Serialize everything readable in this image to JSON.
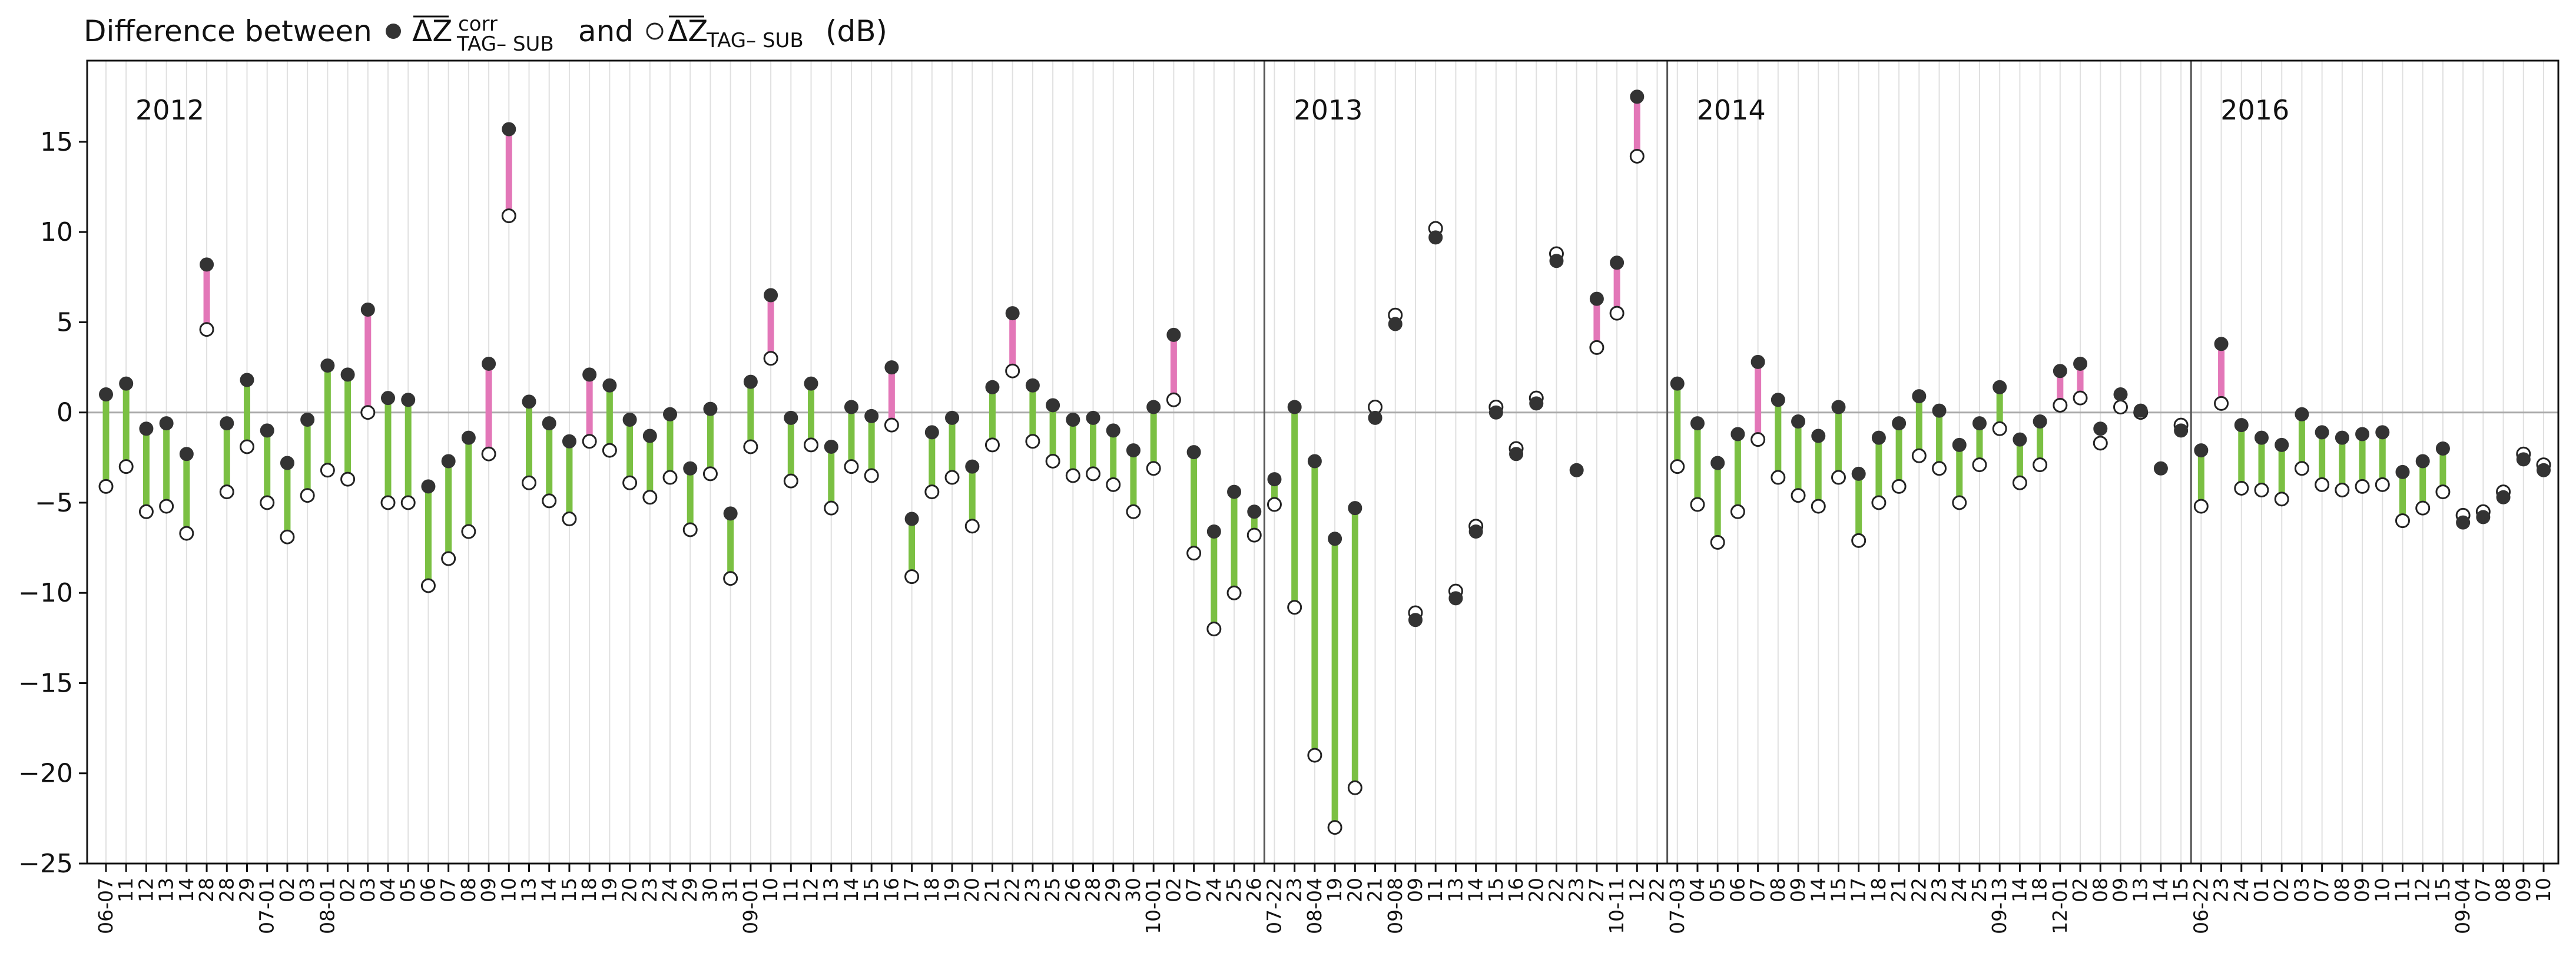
{
  "chart_data": {
    "type": "dumbbell",
    "title_parts": {
      "prefix": "Difference between",
      "symbol": "ΔZ",
      "sup1": "corr",
      "sub1": "TAG– SUB",
      "middle": "and",
      "sub2": "TAG– SUB",
      "unit": "(dB)"
    },
    "ylim": [
      -25,
      19.5
    ],
    "yticks": [
      -25,
      -20,
      -15,
      -10,
      -5,
      0,
      5,
      10,
      15
    ],
    "ytick_labels": [
      "−25",
      "−20",
      "−15",
      "−10",
      "−5",
      "0",
      "5",
      "10",
      "15"
    ],
    "colors": {
      "negative": "#7bc043",
      "positive": "#e377b8",
      "corr_marker": "#333333",
      "zero_line": "#aaaaaa",
      "grid": "#e0e0e0"
    },
    "year_groups": [
      {
        "label": "2012",
        "start": 0
      },
      {
        "label": "2013",
        "start": 58
      },
      {
        "label": "2014",
        "start": 78
      },
      {
        "label": "2016",
        "start": 104
      }
    ],
    "series": [
      {
        "name": "corr",
        "marker": "filled"
      },
      {
        "name": "uncorr",
        "marker": "open"
      }
    ],
    "points": [
      {
        "x": "06-07",
        "corr": 1.0,
        "raw": -4.1
      },
      {
        "x": "11",
        "corr": 1.6,
        "raw": -3.0
      },
      {
        "x": "12",
        "corr": -0.9,
        "raw": -5.5
      },
      {
        "x": "13",
        "corr": -0.6,
        "raw": -5.2
      },
      {
        "x": "14",
        "corr": -2.3,
        "raw": -6.7
      },
      {
        "x": "28",
        "corr": 8.2,
        "raw": 4.6
      },
      {
        "x": "28",
        "corr": -0.6,
        "raw": -4.4
      },
      {
        "x": "29",
        "corr": 1.8,
        "raw": -1.9
      },
      {
        "x": "07-01",
        "corr": -1.0,
        "raw": -5.0
      },
      {
        "x": "02",
        "corr": -2.8,
        "raw": -6.9
      },
      {
        "x": "03",
        "corr": -0.4,
        "raw": -4.6
      },
      {
        "x": "08-01",
        "corr": 2.6,
        "raw": -3.2
      },
      {
        "x": "02",
        "corr": 2.1,
        "raw": -3.7
      },
      {
        "x": "03",
        "corr": 5.7,
        "raw": 0.0
      },
      {
        "x": "04",
        "corr": 0.8,
        "raw": -5.0
      },
      {
        "x": "05",
        "corr": 0.7,
        "raw": -5.0
      },
      {
        "x": "06",
        "corr": -4.1,
        "raw": -9.6
      },
      {
        "x": "07",
        "corr": -2.7,
        "raw": -8.1
      },
      {
        "x": "08",
        "corr": -1.4,
        "raw": -6.6
      },
      {
        "x": "09",
        "corr": 2.7,
        "raw": -2.3
      },
      {
        "x": "10",
        "corr": 15.7,
        "raw": 10.9
      },
      {
        "x": "13",
        "corr": 0.6,
        "raw": -3.9
      },
      {
        "x": "14",
        "corr": -0.6,
        "raw": -4.9
      },
      {
        "x": "15",
        "corr": -1.6,
        "raw": -5.9
      },
      {
        "x": "18",
        "corr": 2.1,
        "raw": -1.6
      },
      {
        "x": "19",
        "corr": 1.5,
        "raw": -2.1
      },
      {
        "x": "20",
        "corr": -0.4,
        "raw": -3.9
      },
      {
        "x": "23",
        "corr": -1.3,
        "raw": -4.7
      },
      {
        "x": "24",
        "corr": -0.1,
        "raw": -3.6
      },
      {
        "x": "29",
        "corr": -3.1,
        "raw": -6.5
      },
      {
        "x": "30",
        "corr": 0.2,
        "raw": -3.4
      },
      {
        "x": "31",
        "corr": -5.6,
        "raw": -9.2
      },
      {
        "x": "09-01",
        "corr": 1.7,
        "raw": -1.9
      },
      {
        "x": "10",
        "corr": 6.5,
        "raw": 3.0
      },
      {
        "x": "11",
        "corr": -0.3,
        "raw": -3.8
      },
      {
        "x": "12",
        "corr": 1.6,
        "raw": -1.8
      },
      {
        "x": "13",
        "corr": -1.9,
        "raw": -5.3
      },
      {
        "x": "14",
        "corr": 0.3,
        "raw": -3.0
      },
      {
        "x": "15",
        "corr": -0.2,
        "raw": -3.5
      },
      {
        "x": "16",
        "corr": 2.5,
        "raw": -0.7
      },
      {
        "x": "17",
        "corr": -5.9,
        "raw": -9.1
      },
      {
        "x": "18",
        "corr": -1.1,
        "raw": -4.4
      },
      {
        "x": "19",
        "corr": -0.3,
        "raw": -3.6
      },
      {
        "x": "20",
        "corr": -3.0,
        "raw": -6.3
      },
      {
        "x": "21",
        "corr": 1.4,
        "raw": -1.8
      },
      {
        "x": "22",
        "corr": 5.5,
        "raw": 2.3
      },
      {
        "x": "23",
        "corr": 1.5,
        "raw": -1.6
      },
      {
        "x": "25",
        "corr": 0.4,
        "raw": -2.7
      },
      {
        "x": "26",
        "corr": -0.4,
        "raw": -3.5
      },
      {
        "x": "28",
        "corr": -0.3,
        "raw": -3.4
      },
      {
        "x": "29",
        "corr": -1.0,
        "raw": -4.0
      },
      {
        "x": "30",
        "corr": -2.1,
        "raw": -5.5
      },
      {
        "x": "10-01",
        "corr": 0.3,
        "raw": -3.1
      },
      {
        "x": "02",
        "corr": 4.3,
        "raw": 0.7
      },
      {
        "x": "07",
        "corr": -2.2,
        "raw": -7.8
      },
      {
        "x": "24",
        "corr": -6.6,
        "raw": -12.0
      },
      {
        "x": "25",
        "corr": -4.4,
        "raw": -10.0
      },
      {
        "x": "26",
        "corr": -5.5,
        "raw": -6.8
      },
      {
        "x": "07-22",
        "corr": -3.7,
        "raw": -5.1
      },
      {
        "x": "23",
        "corr": 0.3,
        "raw": -10.8
      },
      {
        "x": "08-04",
        "corr": -2.7,
        "raw": -19.0
      },
      {
        "x": "19",
        "corr": -7.0,
        "raw": -23.0
      },
      {
        "x": "20",
        "corr": -5.3,
        "raw": -20.8
      },
      {
        "x": "21",
        "corr": -0.3,
        "raw": 0.3
      },
      {
        "x": "09-08",
        "corr": 4.9,
        "raw": 5.4
      },
      {
        "x": "09",
        "corr": -11.5,
        "raw": -11.1
      },
      {
        "x": "11",
        "corr": 9.7,
        "raw": 10.2
      },
      {
        "x": "13",
        "corr": -10.3,
        "raw": -9.9
      },
      {
        "x": "14",
        "corr": -6.6,
        "raw": -6.3
      },
      {
        "x": "15",
        "corr": 0.0,
        "raw": 0.3
      },
      {
        "x": "16",
        "corr": -2.3,
        "raw": -2.0
      },
      {
        "x": "20",
        "corr": 0.5,
        "raw": 0.8
      },
      {
        "x": "22",
        "corr": 8.4,
        "raw": 8.8
      },
      {
        "x": "23",
        "corr": -3.2,
        "raw": null
      },
      {
        "x": "27",
        "corr": 6.3,
        "raw": 3.6
      },
      {
        "x": "10-11",
        "corr": 8.3,
        "raw": 5.5
      },
      {
        "x": "12",
        "corr": 17.5,
        "raw": 14.2
      },
      {
        "x": "22",
        "corr": null,
        "raw": null
      },
      {
        "x": "07-03",
        "corr": 1.6,
        "raw": -3.0
      },
      {
        "x": "04",
        "corr": -0.6,
        "raw": -5.1
      },
      {
        "x": "05",
        "corr": -2.8,
        "raw": -7.2
      },
      {
        "x": "06",
        "corr": -1.2,
        "raw": -5.5
      },
      {
        "x": "07",
        "corr": 2.8,
        "raw": -1.5
      },
      {
        "x": "08",
        "corr": 0.7,
        "raw": -3.6
      },
      {
        "x": "09",
        "corr": -0.5,
        "raw": -4.6
      },
      {
        "x": "14",
        "corr": -1.3,
        "raw": -5.2
      },
      {
        "x": "15",
        "corr": 0.3,
        "raw": -3.6
      },
      {
        "x": "17",
        "corr": -3.4,
        "raw": -7.1
      },
      {
        "x": "18",
        "corr": -1.4,
        "raw": -5.0
      },
      {
        "x": "21",
        "corr": -0.6,
        "raw": -4.1
      },
      {
        "x": "22",
        "corr": 0.9,
        "raw": -2.4
      },
      {
        "x": "23",
        "corr": 0.1,
        "raw": -3.1
      },
      {
        "x": "24",
        "corr": -1.8,
        "raw": -5.0
      },
      {
        "x": "25",
        "corr": -0.6,
        "raw": -2.9
      },
      {
        "x": "09-13",
        "corr": 1.4,
        "raw": -0.9
      },
      {
        "x": "14",
        "corr": -1.5,
        "raw": -3.9
      },
      {
        "x": "18",
        "corr": -0.5,
        "raw": -2.9
      },
      {
        "x": "12-01",
        "corr": 2.3,
        "raw": 0.4
      },
      {
        "x": "02",
        "corr": 2.7,
        "raw": 0.8
      },
      {
        "x": "08",
        "corr": -0.9,
        "raw": -1.7
      },
      {
        "x": "09",
        "corr": 1.0,
        "raw": 0.3
      },
      {
        "x": "13",
        "corr": 0.1,
        "raw": 0.0
      },
      {
        "x": "14",
        "corr": -3.1,
        "raw": null
      },
      {
        "x": "15",
        "corr": -1.0,
        "raw": -0.7
      },
      {
        "x": "06-22",
        "corr": -2.1,
        "raw": -5.2
      },
      {
        "x": "23",
        "corr": 3.8,
        "raw": 0.5
      },
      {
        "x": "24",
        "corr": -0.7,
        "raw": -4.2
      },
      {
        "x": "01",
        "corr": -1.4,
        "raw": -4.3
      },
      {
        "x": "02",
        "corr": -1.8,
        "raw": -4.8
      },
      {
        "x": "03",
        "corr": -0.1,
        "raw": -3.1
      },
      {
        "x": "07",
        "corr": -1.1,
        "raw": -4.0
      },
      {
        "x": "08",
        "corr": -1.4,
        "raw": -4.3
      },
      {
        "x": "09",
        "corr": -1.2,
        "raw": -4.1
      },
      {
        "x": "10",
        "corr": -1.1,
        "raw": -4.0
      },
      {
        "x": "11",
        "corr": -3.3,
        "raw": -6.0
      },
      {
        "x": "12",
        "corr": -2.7,
        "raw": -5.3
      },
      {
        "x": "15",
        "corr": -2.0,
        "raw": -4.4
      },
      {
        "x": "09-04",
        "corr": -6.1,
        "raw": -5.7
      },
      {
        "x": "07",
        "corr": -5.8,
        "raw": -5.5
      },
      {
        "x": "08",
        "corr": -4.7,
        "raw": -4.4
      },
      {
        "x": "09",
        "corr": -2.6,
        "raw": -2.3
      },
      {
        "x": "10",
        "corr": -3.2,
        "raw": -2.9
      }
    ]
  }
}
